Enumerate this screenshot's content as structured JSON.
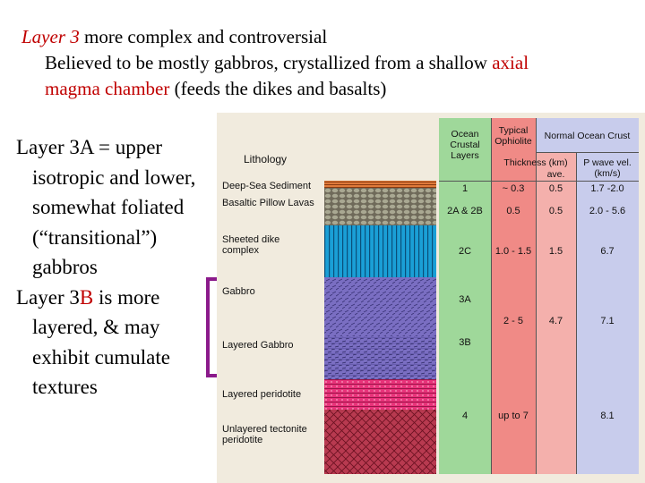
{
  "header": {
    "line1_italic": "Layer 3",
    "line1_rest": " more complex and controversial",
    "line2": "Believed to be mostly gabbros, crystallized from a shallow ",
    "line2_red": "axial",
    "line3_red": "magma chamber",
    "line3_rest": " (feeds the dikes and basalts)"
  },
  "left": {
    "p1": "Layer 3A = upper isotropic and lower, somewhat foliated (“transitional”) gabbros",
    "p2_a": "Layer 3",
    "p2_b": "B",
    "p2_c": " is more layered, & may exhibit cumulate textures"
  },
  "figure": {
    "lithology_title": "Lithology",
    "headers": {
      "ocean_crustal_layers": "Ocean Crustal Layers",
      "typical_ophiolite": "Typical Ophiolite",
      "normal_ocean_crust": "Normal Ocean Crust",
      "thickness": "Thickness (km)",
      "ave": "ave.",
      "pwave": "P wave vel. (km/s)"
    },
    "rock_labels": [
      "Deep-Sea Sediment",
      "Basaltic Pillow Lavas",
      "Sheeted dike complex",
      "Gabbro",
      "Layered Gabbro",
      "Layered peridotite",
      "Unlayered tectonite peridotite"
    ],
    "rows": [
      {
        "layer": "1",
        "ophiolite": "~ 0.3",
        "ave": "0.5",
        "vel": "1.7 -2.0"
      },
      {
        "layer": "2A & 2B",
        "ophiolite": "0.5",
        "ave": "0.5",
        "vel": "2.0 - 5.6"
      },
      {
        "layer": "2C",
        "ophiolite": "1.0 - 1.5",
        "ave": "1.5",
        "vel": "6.7"
      },
      {
        "layer": "3A",
        "ophiolite": "",
        "ave": "",
        "vel": ""
      },
      {
        "layer": "",
        "ophiolite": "2 - 5",
        "ave": "4.7",
        "vel": "7.1"
      },
      {
        "layer": "3B",
        "ophiolite": "",
        "ave": "",
        "vel": ""
      },
      {
        "layer": "4",
        "ophiolite": "up to 7",
        "ave": "",
        "vel": "8.1"
      }
    ]
  },
  "colors": {
    "red_text": "#c00000",
    "bracket": "#8b1a8b",
    "col_layers": "#9fd89a",
    "col_ophiolite": "#f08a86",
    "col_ave": "#f4b0ac",
    "col_vel": "#c8ccec",
    "sediment": "#e07a3a",
    "pillow": "#6f6a5a",
    "dikes": "#1a9fd6",
    "gabbro": "#7a6ec2",
    "layered_peridotite": "#e8337a",
    "tectonite": "#b83a50"
  }
}
